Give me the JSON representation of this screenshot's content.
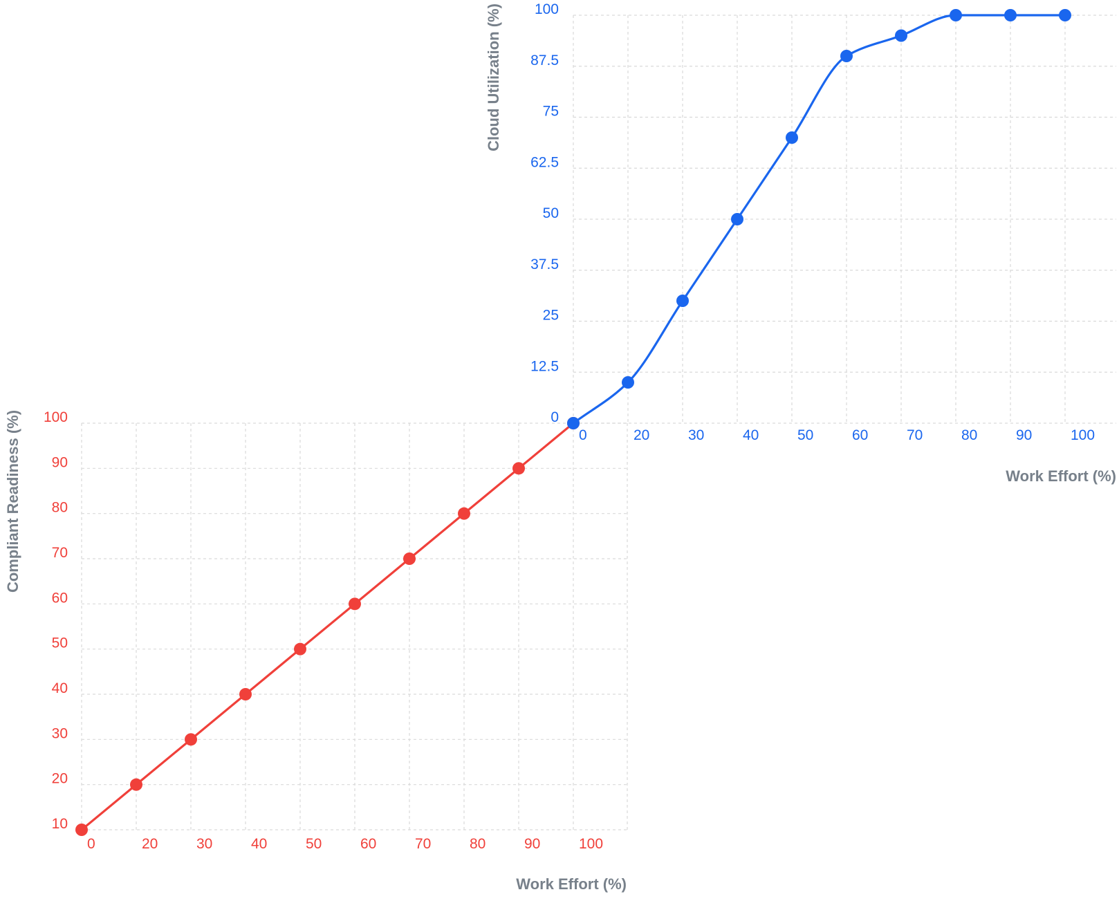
{
  "chart_data": [
    {
      "type": "line",
      "name": "compliant-readiness",
      "color": "#f0403a",
      "xlabel": "Work Effort (%)",
      "ylabel": "Compliant Readiness (%)",
      "x_tick_labels": [
        "0",
        "20",
        "30",
        "40",
        "50",
        "60",
        "70",
        "80",
        "90",
        "100"
      ],
      "y_tick_labels": [
        "10",
        "20",
        "30",
        "40",
        "50",
        "60",
        "70",
        "80",
        "90",
        "100"
      ],
      "ylim": [
        10,
        100
      ],
      "grid": true,
      "curve": "straight",
      "series": [
        {
          "x": [
            "0",
            "20",
            "30",
            "40",
            "50",
            "60",
            "70",
            "80",
            "90",
            "100"
          ],
          "values": [
            10,
            20,
            30,
            40,
            50,
            60,
            70,
            80,
            90,
            100
          ]
        }
      ]
    },
    {
      "type": "line",
      "name": "cloud-utilization",
      "color": "#1a66ee",
      "xlabel": "Work Effort (%)",
      "ylabel": "Cloud Utilization (%)",
      "x_tick_labels": [
        "0",
        "20",
        "30",
        "40",
        "50",
        "60",
        "70",
        "80",
        "90",
        "100"
      ],
      "y_tick_labels": [
        "0",
        "12.5",
        "25",
        "37.5",
        "50",
        "62.5",
        "75",
        "87.5",
        "100"
      ],
      "ylim": [
        0,
        100
      ],
      "grid": true,
      "curve": "smooth",
      "series": [
        {
          "x": [
            "0",
            "20",
            "30",
            "40",
            "50",
            "60",
            "70",
            "80",
            "90",
            "100"
          ],
          "values": [
            0,
            10,
            30,
            50,
            70,
            90,
            95,
            100,
            100,
            100
          ]
        }
      ]
    }
  ]
}
